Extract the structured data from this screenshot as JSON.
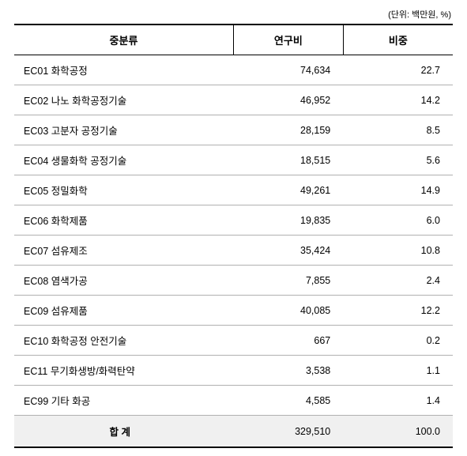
{
  "unit_label": "(단위: 백만원, %)",
  "columns": {
    "category": "중분류",
    "cost": "연구비",
    "ratio": "비중"
  },
  "rows": [
    {
      "category": "EC01 화학공정",
      "cost": "74,634",
      "ratio": "22.7"
    },
    {
      "category": "EC02 나노 화학공정기술",
      "cost": "46,952",
      "ratio": "14.2"
    },
    {
      "category": "EC03 고분자 공정기술",
      "cost": "28,159",
      "ratio": "8.5"
    },
    {
      "category": "EC04 생물화학 공정기술",
      "cost": "18,515",
      "ratio": "5.6"
    },
    {
      "category": "EC05 정밀화학",
      "cost": "49,261",
      "ratio": "14.9"
    },
    {
      "category": "EC06 화학제품",
      "cost": "19,835",
      "ratio": "6.0"
    },
    {
      "category": "EC07 섬유제조",
      "cost": "35,424",
      "ratio": "10.8"
    },
    {
      "category": "EC08 염색가공",
      "cost": "7,855",
      "ratio": "2.4"
    },
    {
      "category": "EC09 섬유제품",
      "cost": "40,085",
      "ratio": "12.2"
    },
    {
      "category": "EC10 화학공정 안전기술",
      "cost": "667",
      "ratio": "0.2"
    },
    {
      "category": "EC11 무기화생방/화력탄약",
      "cost": "3,538",
      "ratio": "1.1"
    },
    {
      "category": "EC99 기타 화공",
      "cost": "4,585",
      "ratio": "1.4"
    }
  ],
  "total": {
    "label": "합 계",
    "cost": "329,510",
    "ratio": "100.0"
  },
  "styling": {
    "type": "table",
    "background_color": "#ffffff",
    "header_border_top": "2px solid #000",
    "header_border_bottom": "1px solid #000",
    "row_border_color": "#b0b0b0",
    "total_row_bg": "#f0f0f0",
    "total_border": "#000",
    "body_fontsize": 12.5,
    "header_fontsize": 13,
    "unit_fontsize": 11,
    "col_widths": [
      "50%",
      "25%",
      "25%"
    ]
  }
}
